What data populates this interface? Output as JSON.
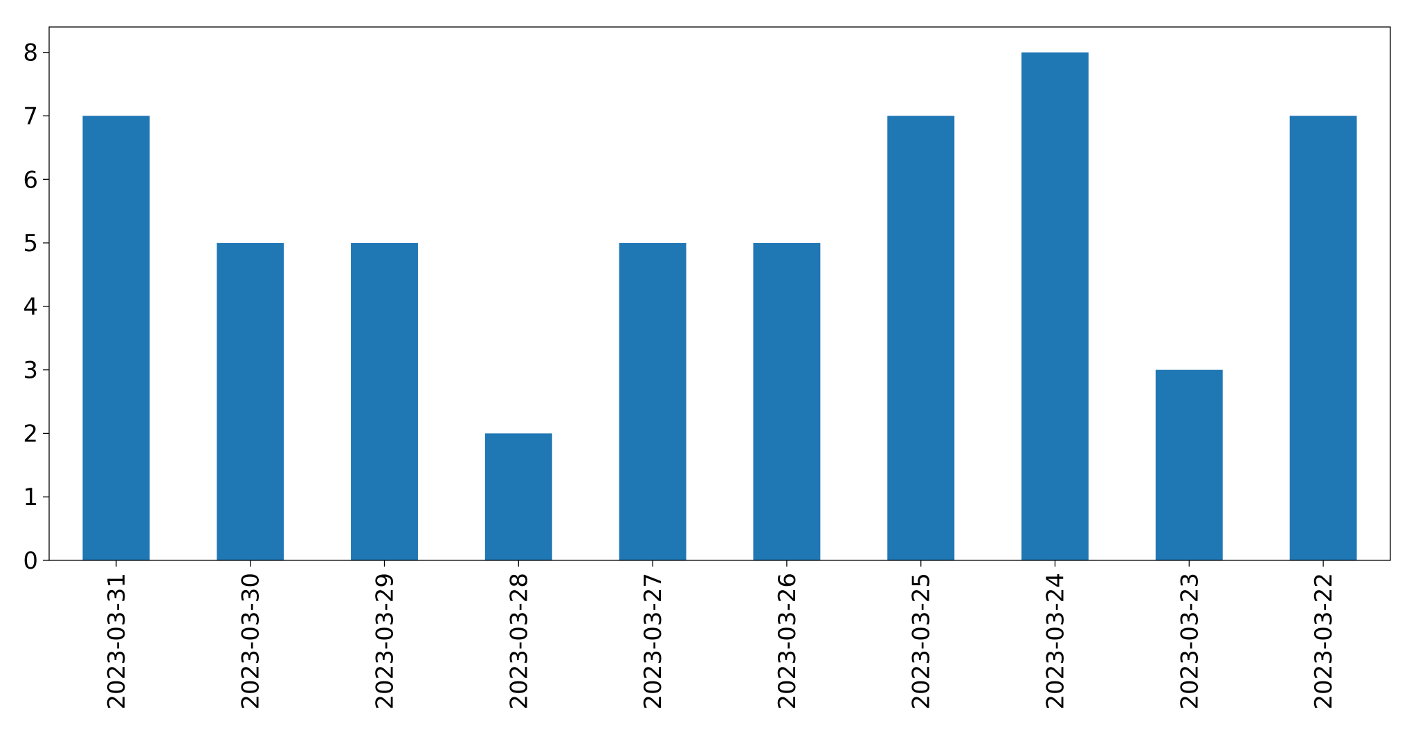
{
  "chart_data": {
    "type": "bar",
    "categories": [
      "2023-03-31",
      "2023-03-30",
      "2023-03-29",
      "2023-03-28",
      "2023-03-27",
      "2023-03-26",
      "2023-03-25",
      "2023-03-24",
      "2023-03-23",
      "2023-03-22"
    ],
    "values": [
      7,
      5,
      5,
      2,
      5,
      5,
      7,
      8,
      3,
      7
    ],
    "color": "#1f77b4",
    "ylim": [
      0,
      8.4
    ],
    "yticks": [
      0,
      1,
      2,
      3,
      4,
      5,
      6,
      7,
      8
    ],
    "grid": false
  }
}
